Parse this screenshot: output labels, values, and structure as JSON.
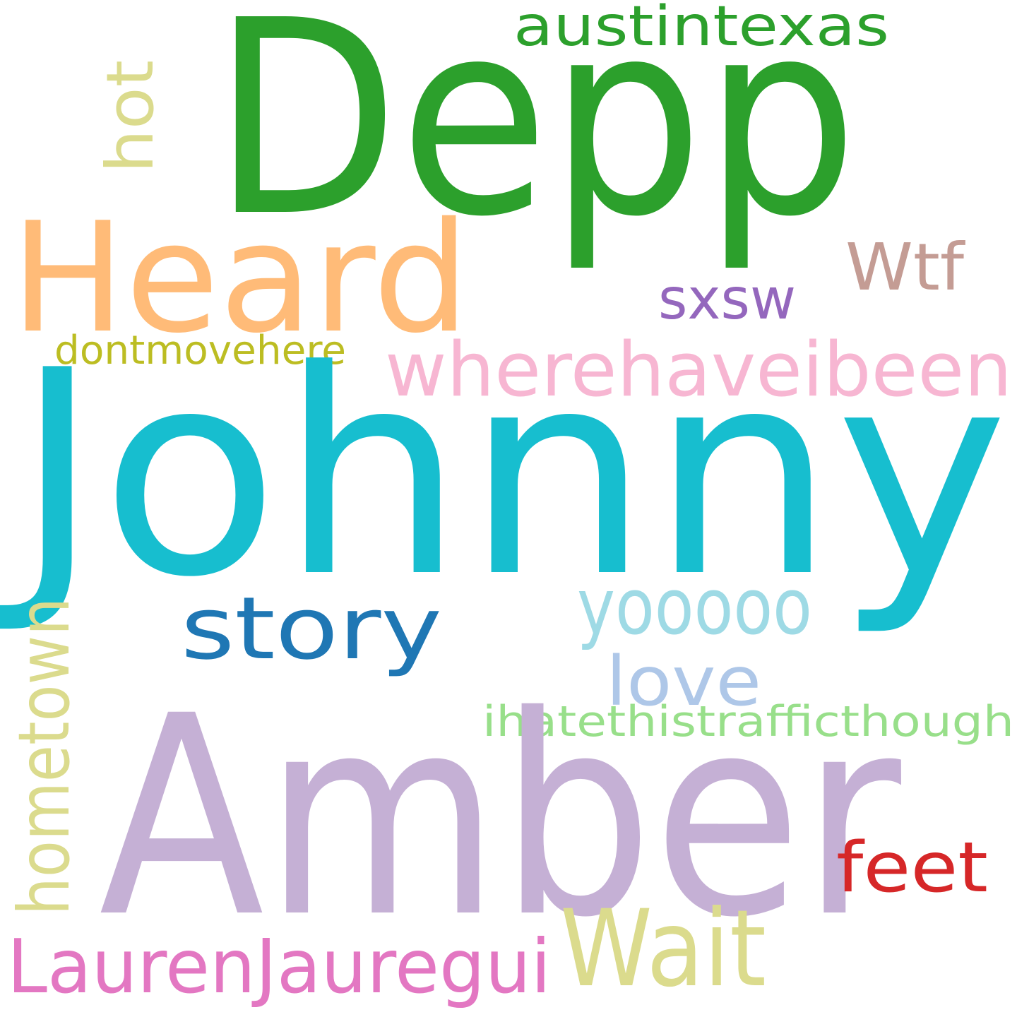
{
  "words": [
    {
      "id": "depp",
      "text": "Depp",
      "color": "#2ca02c",
      "orientation": "horizontal"
    },
    {
      "id": "austintexas",
      "text": "austintexas",
      "color": "#2ca02c",
      "orientation": "horizontal"
    },
    {
      "id": "hot",
      "text": "hot",
      "color": "#dbdb8d",
      "orientation": "vertical"
    },
    {
      "id": "heard",
      "text": "Heard",
      "color": "#ffbb78",
      "orientation": "horizontal"
    },
    {
      "id": "wtf",
      "text": "Wtf",
      "color": "#c49c94",
      "orientation": "horizontal"
    },
    {
      "id": "sxsw",
      "text": "sxsw",
      "color": "#9467bd",
      "orientation": "horizontal"
    },
    {
      "id": "dontmovehere",
      "text": "dontmovehere",
      "color": "#bcbd22",
      "orientation": "horizontal"
    },
    {
      "id": "wherehaveibeen",
      "text": "wherehaveibeen",
      "color": "#f7b6d2",
      "orientation": "horizontal"
    },
    {
      "id": "johnny",
      "text": "Johnny",
      "color": "#17becf",
      "orientation": "horizontal"
    },
    {
      "id": "hometown",
      "text": "hometown",
      "color": "#dbdb8d",
      "orientation": "vertical"
    },
    {
      "id": "story",
      "text": "story",
      "color": "#1f77b4",
      "orientation": "horizontal"
    },
    {
      "id": "yooooo",
      "text": "yooooo",
      "color": "#9edae5",
      "orientation": "horizontal"
    },
    {
      "id": "love",
      "text": "love",
      "color": "#aec7e8",
      "orientation": "horizontal"
    },
    {
      "id": "ihatethistrafficthough",
      "text": "ihatethistrafficthough",
      "color": "#98df8a",
      "orientation": "horizontal"
    },
    {
      "id": "amber",
      "text": "Amber",
      "color": "#c5b0d5",
      "orientation": "horizontal"
    },
    {
      "id": "feet",
      "text": "feet",
      "color": "#d62728",
      "orientation": "horizontal"
    },
    {
      "id": "wait",
      "text": "Wait",
      "color": "#dbdb8d",
      "orientation": "horizontal"
    },
    {
      "id": "laurenjauregui",
      "text": "LaurenJauregui",
      "color": "#e377c2",
      "orientation": "horizontal"
    }
  ]
}
